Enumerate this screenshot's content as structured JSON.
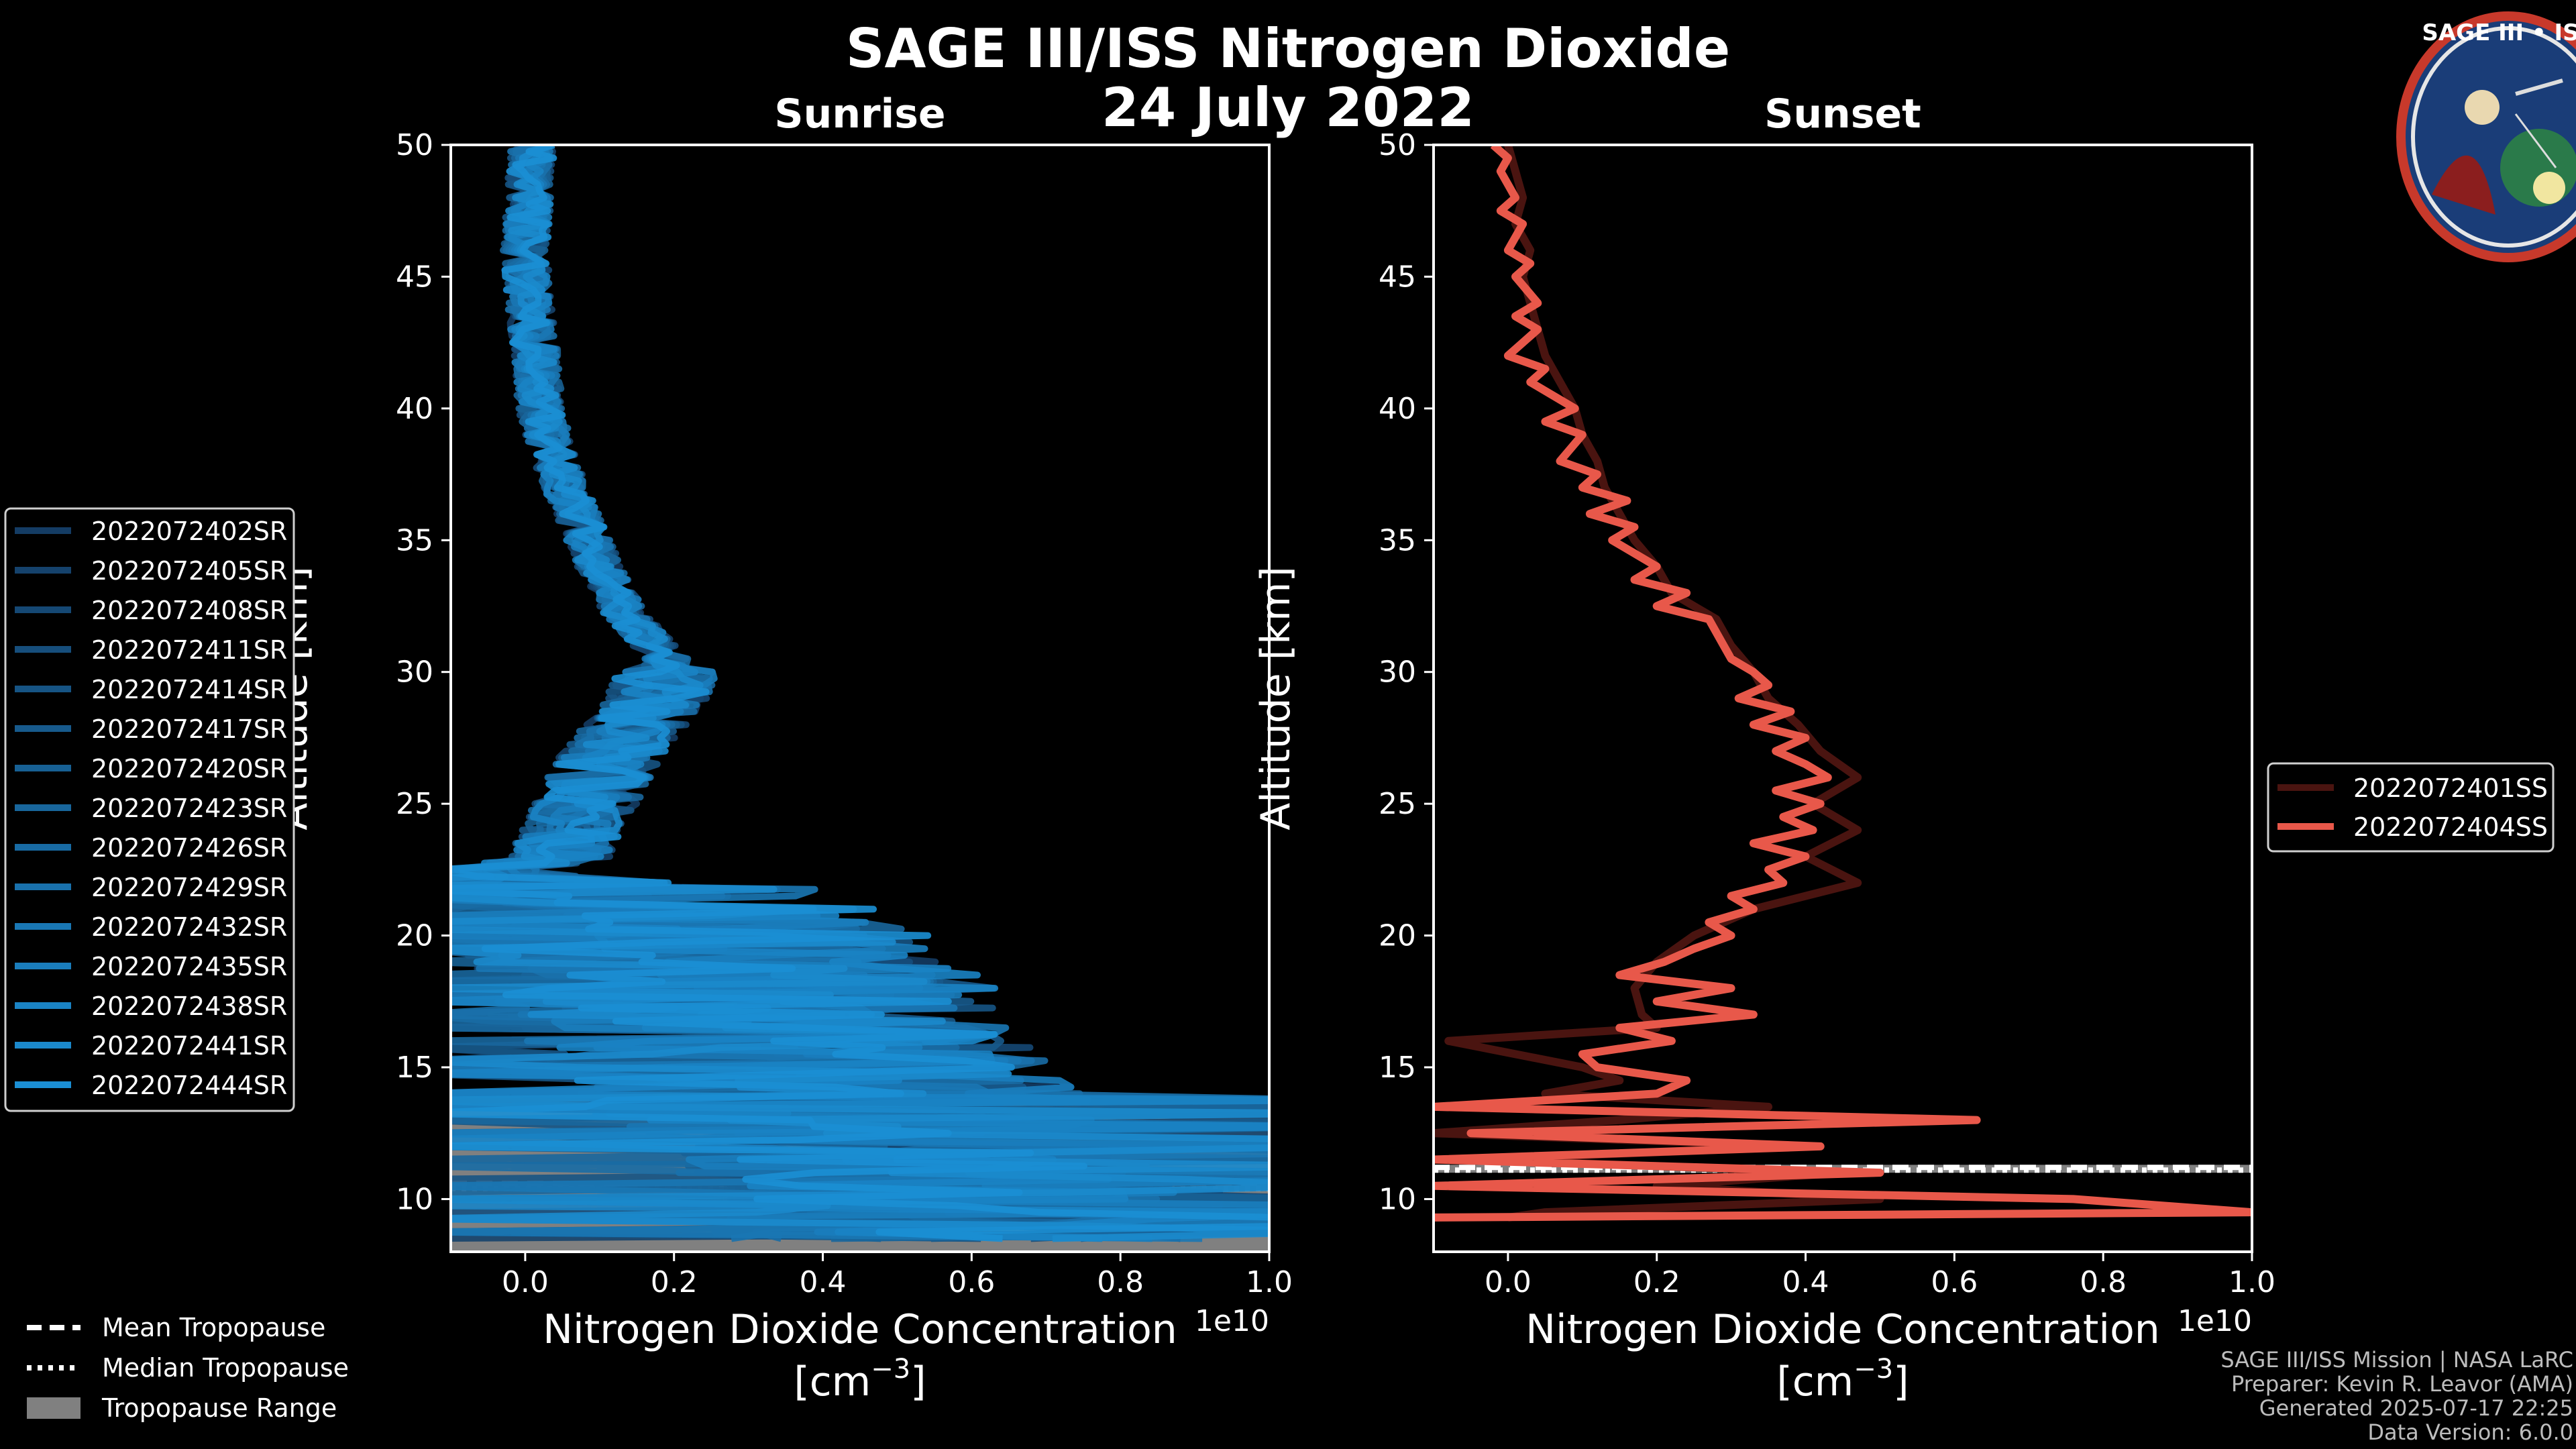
{
  "title": "SAGE III/ISS Nitrogen Dioxide",
  "date": "24 July 2022",
  "logo": {
    "top_text": "SAGE III • ISS"
  },
  "colors": {
    "background": "#000000",
    "sunrise": "#1b8fd4",
    "sunset": "#e8584a",
    "tropopause_range": "#808080"
  },
  "tropopause_legend": {
    "mean": "Mean Tropopause",
    "median": "Median Tropopause",
    "range": "Tropopause Range"
  },
  "footer": [
    "SAGE III/ISS Mission | NASA LaRC",
    "Preparer: Kevin R. Leavor (AMA)",
    "Generated 2025-07-17 22:25",
    "Data Version: 6.0.0"
  ],
  "chart_data": [
    {
      "type": "line",
      "title": "Sunrise",
      "xlabel_line1": "Nitrogen Dioxide Concentration",
      "xlabel_line2": "[cm",
      "xlabel_exp": "−3",
      "xlabel_close": "]",
      "x_multiplier": "1e10",
      "ylabel": "Altitude [km]",
      "xlim": [
        -0.1,
        1.0
      ],
      "ylim": [
        8,
        50
      ],
      "xticks": [
        0.0,
        0.2,
        0.4,
        0.6,
        0.8,
        1.0
      ],
      "xtick_labels": [
        "0.0",
        "0.2",
        "0.4",
        "0.6",
        "0.8",
        "1.0"
      ],
      "yticks": [
        10,
        15,
        20,
        25,
        30,
        35,
        40,
        45,
        50
      ],
      "tropopause": {
        "range": [
          8.0,
          13.9
        ],
        "mean": 10.6,
        "median": 10.4
      },
      "series": [
        {
          "name": "2022072402SR"
        },
        {
          "name": "2022072405SR"
        },
        {
          "name": "2022072408SR"
        },
        {
          "name": "2022072411SR"
        },
        {
          "name": "2022072414SR"
        },
        {
          "name": "2022072417SR"
        },
        {
          "name": "2022072420SR"
        },
        {
          "name": "2022072423SR"
        },
        {
          "name": "2022072426SR"
        },
        {
          "name": "2022072429SR"
        },
        {
          "name": "2022072432SR"
        },
        {
          "name": "2022072435SR"
        },
        {
          "name": "2022072438SR"
        },
        {
          "name": "2022072441SR"
        },
        {
          "name": "2022072444SR"
        }
      ],
      "mean_profile": {
        "altitude": [
          50,
          48,
          46,
          44,
          42,
          40,
          38,
          36,
          34,
          32,
          30.5,
          29,
          28,
          27,
          26,
          25,
          24,
          23,
          22.5,
          22,
          21,
          20,
          19,
          18,
          17,
          16,
          15,
          14,
          13,
          12,
          11,
          10,
          9,
          8.5
        ],
        "no2": [
          0.01,
          0.005,
          0.0,
          0.005,
          0.015,
          0.02,
          0.04,
          0.07,
          0.1,
          0.14,
          0.19,
          0.18,
          0.15,
          0.12,
          0.1,
          0.08,
          0.06,
          0.05,
          -0.05,
          0.05,
          0.12,
          0.2,
          0.25,
          0.3,
          0.28,
          0.35,
          0.35,
          0.4,
          0.45,
          0.5,
          0.55,
          0.6,
          0.6,
          0.6
        ]
      }
    },
    {
      "type": "line",
      "title": "Sunset",
      "xlabel_line1": "Nitrogen Dioxide Concentration",
      "xlabel_line2": "[cm",
      "xlabel_exp": "−3",
      "xlabel_close": "]",
      "x_multiplier": "1e10",
      "ylabel": "Altitude [km]",
      "xlim": [
        -0.1,
        1.0
      ],
      "ylim": [
        8,
        50
      ],
      "xticks": [
        0.0,
        0.2,
        0.4,
        0.6,
        0.8,
        1.0
      ],
      "xtick_labels": [
        "0.0",
        "0.2",
        "0.4",
        "0.6",
        "0.8",
        "1.0"
      ],
      "yticks": [
        10,
        15,
        20,
        25,
        30,
        35,
        40,
        45,
        50
      ],
      "tropopause": {
        "range": [
          11.0,
          11.3
        ],
        "mean": 11.2,
        "median": 11.1
      },
      "series": [
        {
          "name": "2022072401SS",
          "altitude": [
            50,
            49,
            48,
            47,
            46,
            45,
            44,
            43,
            42,
            41,
            40,
            39,
            38,
            37,
            36,
            35,
            34,
            33,
            32,
            31,
            30,
            29,
            28,
            27,
            26,
            25,
            24,
            23,
            22,
            21,
            20,
            19,
            18,
            17,
            16.5,
            16,
            15,
            14.5,
            14,
            13.5,
            13,
            12.5,
            12,
            11.5,
            11,
            10.5,
            10,
            9.5,
            9.3
          ],
          "no2": [
            0.0,
            0.01,
            0.02,
            0.01,
            0.03,
            0.02,
            0.03,
            0.04,
            0.05,
            0.07,
            0.09,
            0.1,
            0.12,
            0.13,
            0.15,
            0.17,
            0.2,
            0.22,
            0.28,
            0.3,
            0.33,
            0.35,
            0.39,
            0.42,
            0.47,
            0.41,
            0.47,
            0.4,
            0.47,
            0.33,
            0.25,
            0.2,
            0.17,
            0.18,
            0.2,
            -0.08,
            0.1,
            0.15,
            0.05,
            0.35,
            0.15,
            -0.1,
            0.4,
            -0.05,
            0.45,
            0.2,
            0.5,
            0.05,
            0.0
          ]
        },
        {
          "name": "2022072404SS",
          "altitude": [
            50,
            49.5,
            49,
            48,
            47.5,
            47,
            46,
            45.5,
            45,
            44,
            43.5,
            43,
            42,
            41.5,
            41,
            40,
            39.5,
            39,
            38,
            37.5,
            37,
            36.5,
            36,
            35.5,
            35,
            34,
            33.5,
            33,
            32.5,
            32,
            31,
            30.5,
            30,
            29.5,
            29,
            28.5,
            28,
            27.5,
            27,
            26.5,
            26,
            25.5,
            25,
            24.5,
            24,
            23.5,
            23,
            22.5,
            22,
            21.5,
            21,
            20.5,
            20,
            19.5,
            19,
            18.5,
            18,
            17.5,
            17,
            16.5,
            16,
            15.5,
            15,
            14.5,
            14,
            13.5,
            13,
            12.5,
            12,
            11.5,
            11,
            10.5,
            10,
            9.5,
            9.3
          ],
          "no2": [
            -0.02,
            0.0,
            -0.01,
            0.01,
            -0.01,
            0.02,
            0.0,
            0.03,
            0.01,
            0.04,
            0.01,
            0.04,
            0.0,
            0.05,
            0.03,
            0.09,
            0.05,
            0.1,
            0.07,
            0.12,
            0.1,
            0.16,
            0.11,
            0.17,
            0.14,
            0.2,
            0.17,
            0.24,
            0.2,
            0.27,
            0.29,
            0.3,
            0.33,
            0.35,
            0.31,
            0.38,
            0.33,
            0.4,
            0.36,
            0.4,
            0.43,
            0.36,
            0.42,
            0.37,
            0.41,
            0.33,
            0.4,
            0.35,
            0.37,
            0.3,
            0.33,
            0.27,
            0.3,
            0.25,
            0.21,
            0.15,
            0.3,
            0.2,
            0.33,
            0.15,
            0.22,
            0.1,
            0.12,
            0.24,
            0.2,
            -0.1,
            0.63,
            -0.05,
            0.42,
            -0.1,
            0.5,
            -0.1,
            0.76,
            1.0,
            -0.1
          ]
        }
      ]
    }
  ]
}
